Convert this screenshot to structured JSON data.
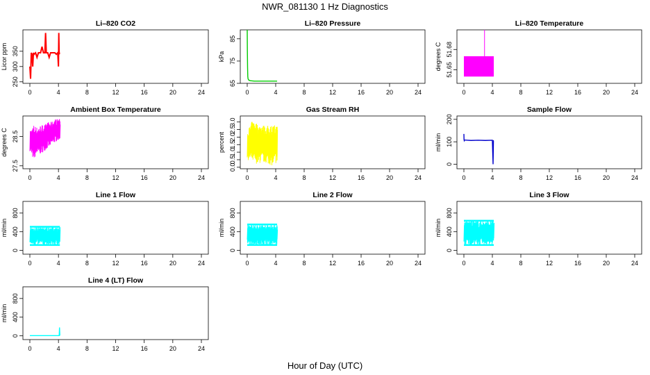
{
  "title": "NWR_081130  1 Hz Diagnostics",
  "xlabel": "Hour of Day (UTC)",
  "chart_data": [
    {
      "type": "line",
      "title": "Li–820 CO2",
      "ylabel": "Licor ppm",
      "color": "#ff0000",
      "xlim": [
        0,
        24
      ],
      "xticks": [
        0,
        4,
        8,
        12,
        16,
        20,
        24
      ],
      "ylim": [
        245,
        420
      ],
      "yticks": [
        250,
        300,
        350
      ],
      "x": [
        0.0,
        0.1,
        0.2,
        0.3,
        0.4,
        0.5,
        0.6,
        0.8,
        1.0,
        1.2,
        1.5,
        1.7,
        1.9,
        2.1,
        2.2,
        2.3,
        2.5,
        2.7,
        2.9,
        3.1,
        3.3,
        3.5,
        3.7,
        3.9,
        4.0,
        4.05,
        4.1,
        4.15,
        4.2
      ],
      "y": [
        300,
        260,
        345,
        340,
        300,
        345,
        340,
        345,
        330,
        345,
        345,
        365,
        345,
        345,
        410,
        345,
        345,
        330,
        345,
        345,
        345,
        345,
        340,
        345,
        300,
        410,
        340,
        345,
        345
      ]
    },
    {
      "type": "line",
      "title": "Li–820 Pressure",
      "ylabel": "kPa",
      "color": "#00cc00",
      "xlim": [
        0,
        24
      ],
      "xticks": [
        0,
        4,
        8,
        12,
        16,
        20,
        24
      ],
      "ylim": [
        65,
        89
      ],
      "yticks": [
        65,
        75,
        85
      ],
      "x": [
        0.0,
        0.02,
        0.05,
        0.08,
        0.12,
        0.2,
        0.4,
        1.0,
        2.0,
        3.0,
        4.2
      ],
      "y": [
        89,
        80,
        72,
        68,
        67,
        66.5,
        66.2,
        66.0,
        66.0,
        66.0,
        66.0
      ]
    },
    {
      "type": "area",
      "title": "Li–820 Temperature",
      "ylabel": "degrees C",
      "color": "#ff00ff",
      "xlim": [
        0,
        24
      ],
      "xticks": [
        0,
        4,
        8,
        12,
        16,
        20,
        24
      ],
      "ylim": [
        51.63,
        51.709
      ],
      "yticks": [
        51.65,
        51.68
      ],
      "x": [
        0.0,
        4.2
      ],
      "y_low": 51.64,
      "y_high": 51.67,
      "spike_x": 2.9,
      "spike_y": 51.709
    },
    {
      "type": "line",
      "title": "Ambient Box Temperature",
      "ylabel": "degrees C",
      "color": "#ff00ff",
      "xlim": [
        0,
        24
      ],
      "xticks": [
        0,
        4,
        8,
        12,
        16,
        20,
        24
      ],
      "ylim": [
        27.4,
        29.2
      ],
      "yticks": [
        27.5,
        28.5
      ],
      "x": [
        0.0,
        0.5,
        1.0,
        1.5,
        2.0,
        2.5,
        3.0,
        3.5,
        4.2
      ],
      "y_low": [
        28.0,
        27.7,
        27.9,
        27.9,
        28.0,
        28.1,
        28.2,
        28.3,
        28.4
      ],
      "y_high": [
        28.7,
        28.9,
        28.8,
        28.9,
        28.9,
        29.0,
        29.0,
        29.1,
        29.1
      ]
    },
    {
      "type": "line",
      "title": "Gas Stream RH",
      "ylabel": "percent",
      "color": "#ffff00",
      "xlim": [
        0,
        24
      ],
      "xticks": [
        0,
        4,
        8,
        12,
        16,
        20,
        24
      ],
      "ylim": [
        -0.1,
        3.4
      ],
      "yticks": [
        0.0,
        0.5,
        1.0,
        1.5,
        2.0,
        2.5,
        3.0
      ],
      "x": [
        0.0,
        0.5,
        1.0,
        1.5,
        2.0,
        2.5,
        3.0,
        3.5,
        4.2
      ],
      "y_low": [
        0.5,
        0.4,
        0.3,
        0.2,
        0.3,
        0.3,
        0.2,
        0.1,
        0.3
      ],
      "y_high": [
        2.4,
        3.0,
        3.1,
        2.8,
        2.9,
        2.7,
        2.8,
        2.8,
        2.8
      ]
    },
    {
      "type": "line",
      "title": "Sample Flow",
      "ylabel": "ml/min",
      "color": "#0000cc",
      "xlim": [
        0,
        24
      ],
      "xticks": [
        0,
        4,
        8,
        12,
        16,
        20,
        24
      ],
      "ylim": [
        -20,
        215
      ],
      "yticks": [
        0,
        100,
        200
      ],
      "x": [
        0.0,
        0.02,
        0.05,
        0.1,
        0.5,
        1.0,
        2.0,
        3.0,
        4.0,
        4.1,
        4.15,
        4.2
      ],
      "y": [
        135,
        110,
        105,
        108,
        107,
        106,
        107,
        106,
        107,
        0,
        105,
        105
      ]
    },
    {
      "type": "line",
      "title": "Line 1 Flow",
      "ylabel": "ml/min",
      "color": "#00ffff",
      "xlim": [
        0,
        24
      ],
      "xticks": [
        0,
        4,
        8,
        12,
        16,
        20,
        24
      ],
      "ylim": [
        -80,
        1050
      ],
      "yticks": [
        0,
        400,
        800
      ],
      "x": [
        0.0,
        4.2
      ],
      "y_low": 120,
      "y_high": 510
    },
    {
      "type": "line",
      "title": "Line 2 Flow",
      "ylabel": "ml/min",
      "color": "#00ffff",
      "xlim": [
        0,
        24
      ],
      "xticks": [
        0,
        4,
        8,
        12,
        16,
        20,
        24
      ],
      "ylim": [
        -80,
        1050
      ],
      "yticks": [
        0,
        400,
        800
      ],
      "x": [
        0.0,
        4.2
      ],
      "y_low": 120,
      "y_high": 560
    },
    {
      "type": "line",
      "title": "Line 3 Flow",
      "ylabel": "ml/min",
      "color": "#00ffff",
      "xlim": [
        0,
        24
      ],
      "xticks": [
        0,
        4,
        8,
        12,
        16,
        20,
        24
      ],
      "ylim": [
        -80,
        1050
      ],
      "yticks": [
        0,
        400,
        800
      ],
      "x": [
        0.0,
        4.2
      ],
      "y_low": 120,
      "y_high": 640
    },
    {
      "type": "line",
      "title": "Line 4 (LT) Flow",
      "ylabel": "ml/min",
      "color": "#00ffff",
      "xlim": [
        0,
        24
      ],
      "xticks": [
        0,
        4,
        8,
        12,
        16,
        20,
        24
      ],
      "ylim": [
        -80,
        1050
      ],
      "yticks": [
        0,
        400,
        800
      ],
      "x": [
        0.0,
        4.0,
        4.1,
        4.15,
        4.2
      ],
      "y": [
        5,
        5,
        5,
        180,
        5
      ]
    }
  ]
}
